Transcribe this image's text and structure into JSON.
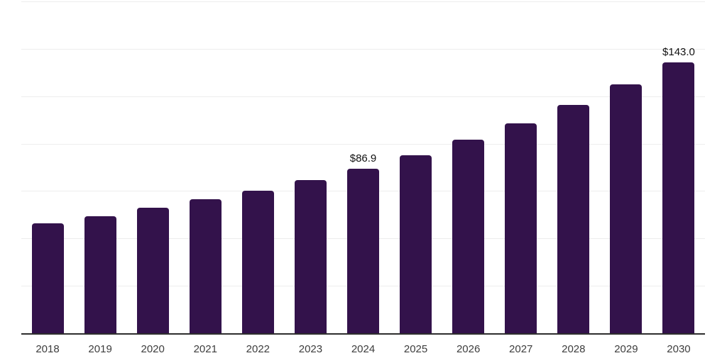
{
  "chart_data": {
    "type": "bar",
    "title": "",
    "xlabel": "",
    "ylabel": "",
    "categories": [
      "2018",
      "2019",
      "2020",
      "2021",
      "2022",
      "2023",
      "2024",
      "2025",
      "2026",
      "2027",
      "2028",
      "2029",
      "2030"
    ],
    "values": [
      57.8,
      61.7,
      66.0,
      70.5,
      75.2,
      80.8,
      86.9,
      94.0,
      102.2,
      110.7,
      120.4,
      131.3,
      143.0
    ],
    "data_labels": [
      {
        "category": "2024",
        "text": "$86.9"
      },
      {
        "category": "2030",
        "text": "$143.0"
      }
    ],
    "ylim": [
      0,
      175
    ],
    "grid_step": 25,
    "grid": true,
    "legend": false,
    "y_tick_labels_visible": false,
    "colors": {
      "bar": "#33124B",
      "gridline": "#EDEDED",
      "axis": "#2E2E2E",
      "tick_label": "#3D3D3D",
      "value_label": "#111111",
      "background": "#FFFFFF"
    }
  }
}
